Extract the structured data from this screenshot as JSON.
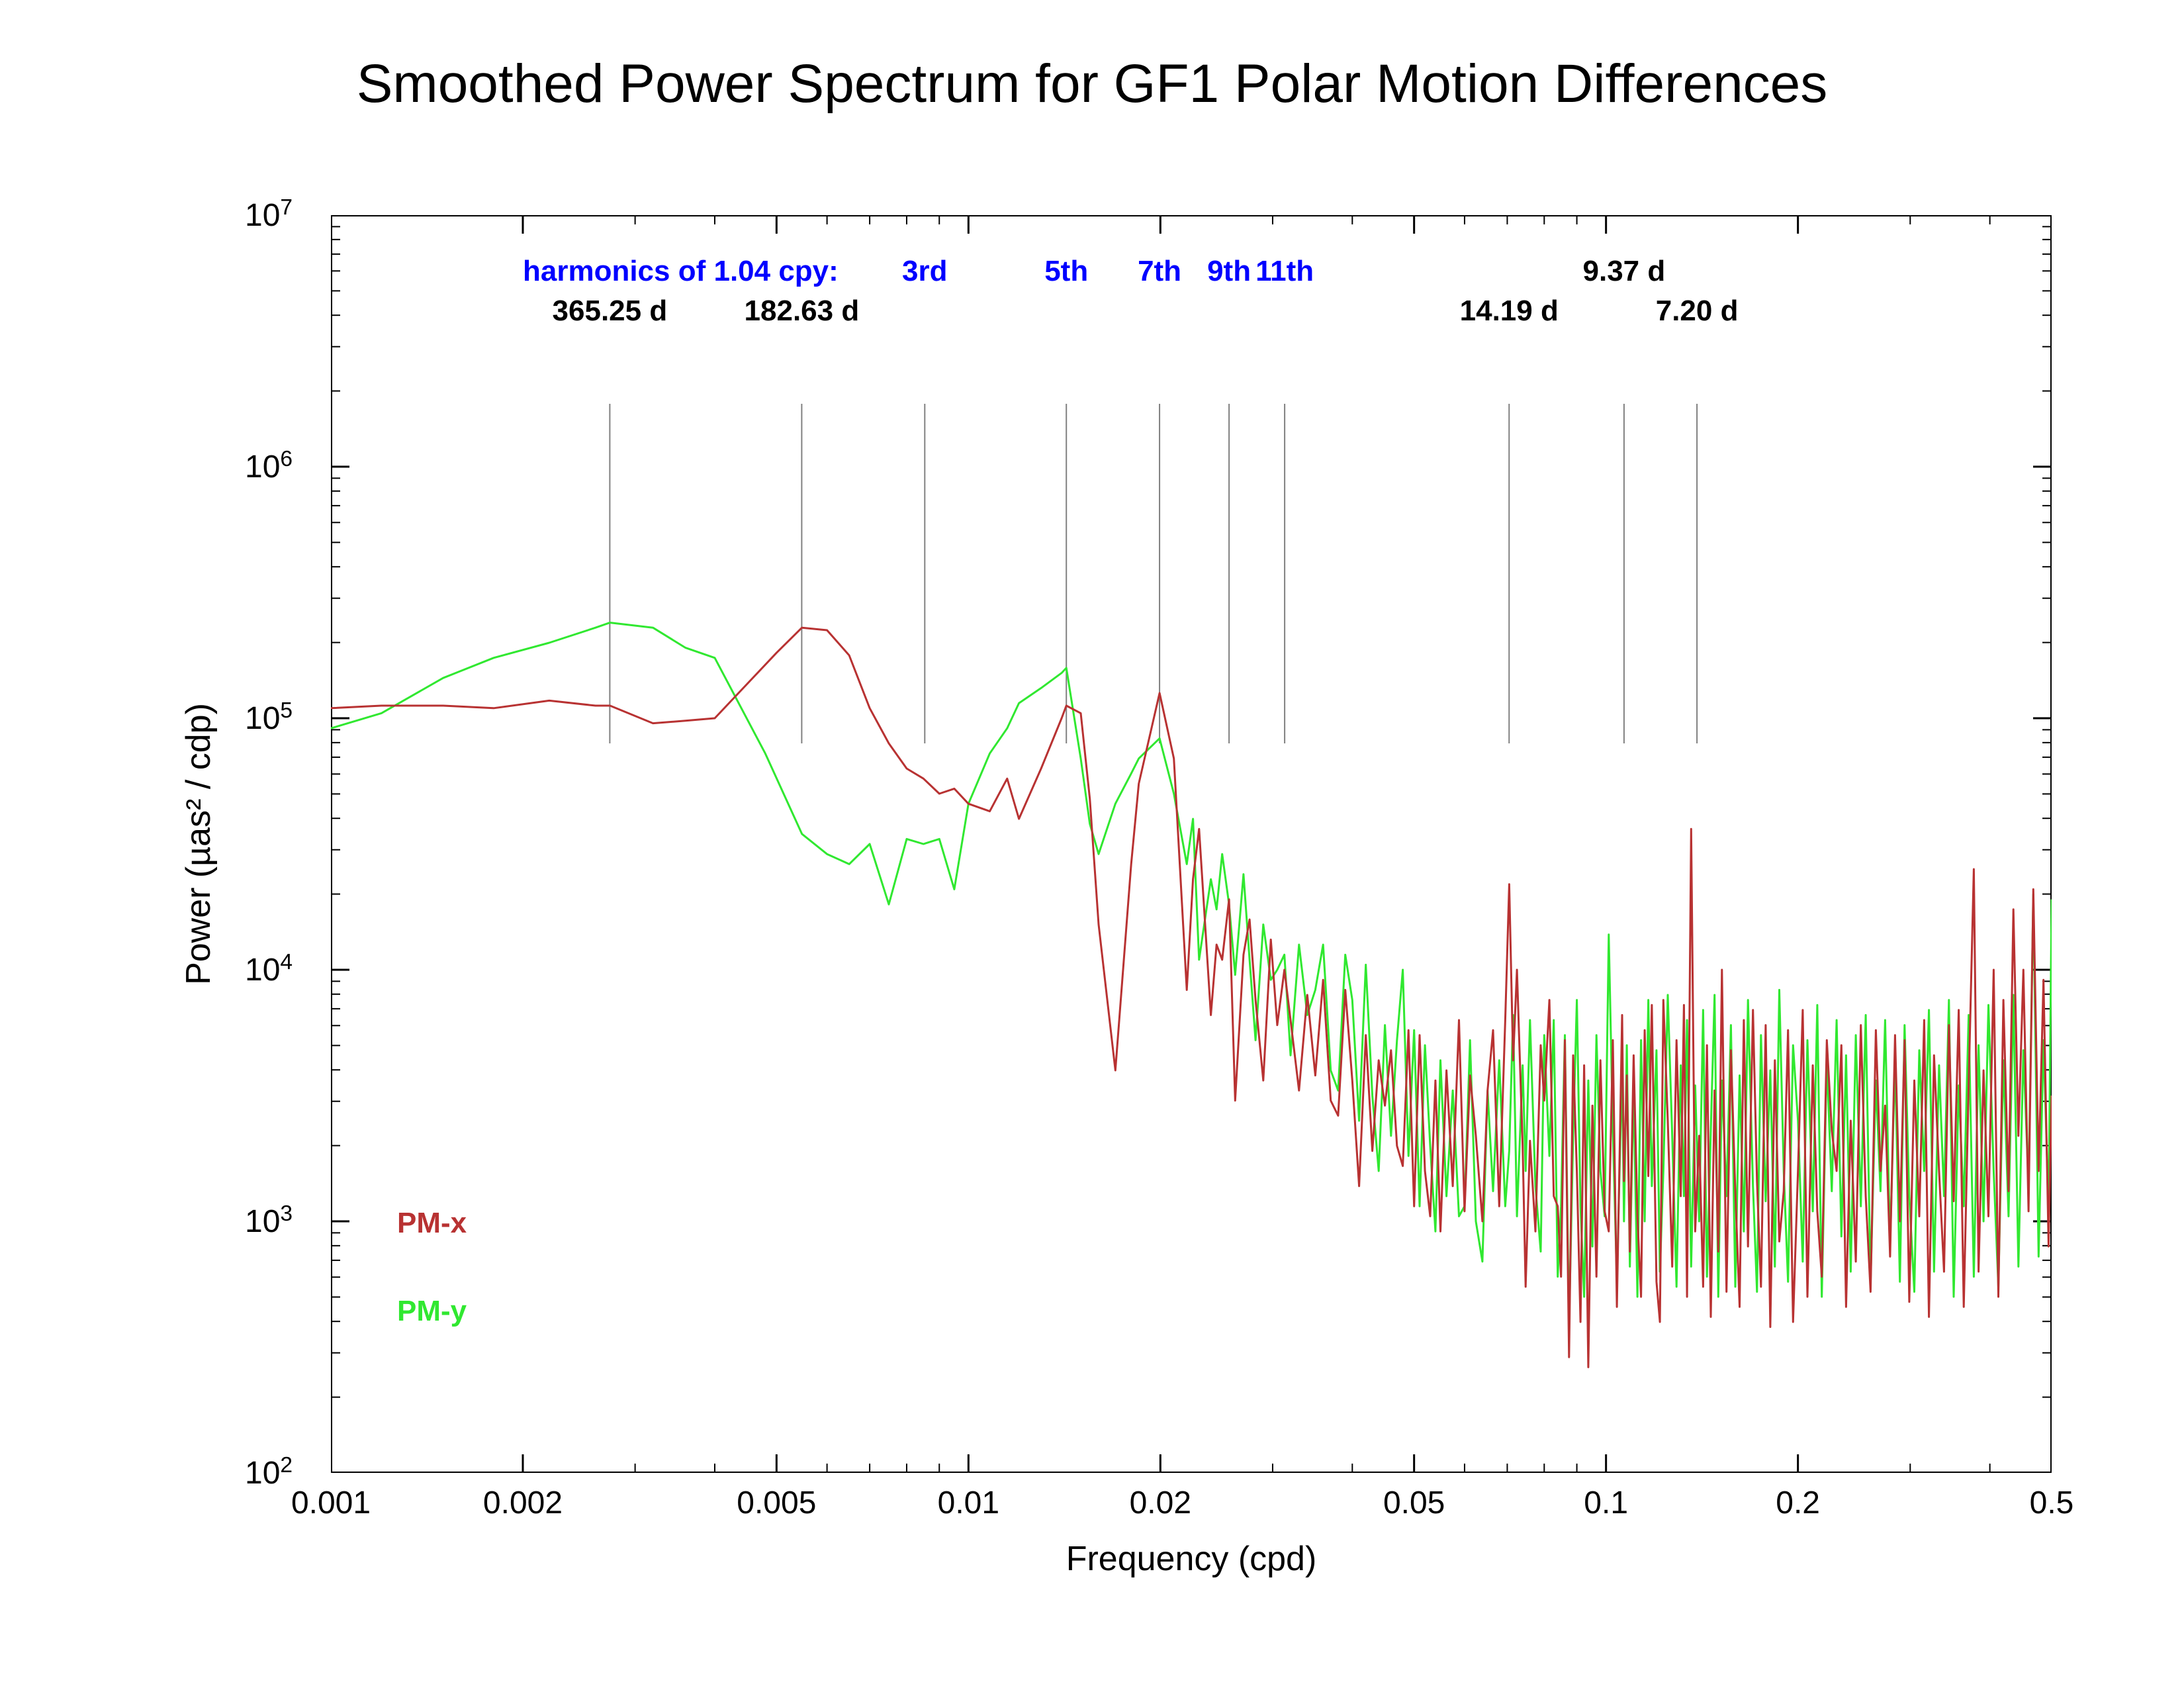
{
  "title": "Smoothed Power Spectrum for GF1 Polar Motion Differences",
  "xlabel": "Frequency (cpd)",
  "ylabel": "Power (µas² / cdp)",
  "x": {
    "min_log10": -3.0,
    "max_log10": -0.3010299957,
    "ticks": [
      0.001,
      0.002,
      0.005,
      0.01,
      0.02,
      0.05,
      0.1,
      0.2,
      0.5
    ],
    "tick_labels": [
      "0.001",
      "0.002",
      "0.005",
      "0.01",
      "0.02",
      "0.05",
      "0.1",
      "0.2",
      "0.5"
    ]
  },
  "y": {
    "min_exp": 2,
    "max_exp": 7,
    "ticks_exp": [
      2,
      3,
      4,
      5,
      6,
      7
    ]
  },
  "colors": {
    "background": "#ffffff",
    "axis": "#000000",
    "tick": "#000000",
    "harmonic_line": "#808080",
    "harmonic_label_blue": "#0000ff",
    "harmonic_label_black": "#000000",
    "pmx": "#b83232",
    "pmy": "#30e830",
    "title_text": "#000000"
  },
  "title_fontsize": 82,
  "axis_label_fontsize": 52,
  "tick_fontsize": 48,
  "harmonic_fontsize": 44,
  "legend_fontsize": 44,
  "line_width_series": 3,
  "line_width_harmonic": 2,
  "axis_line_width": 4,
  "harmonics_legend": "harmonics of 1.04 cpy:",
  "harmonics_blue": [
    {
      "label": "3rd",
      "freq": 0.00854
    },
    {
      "label": "5th",
      "freq": 0.01424
    },
    {
      "label": "7th",
      "freq": 0.01994
    },
    {
      "label": "9th",
      "freq": 0.02563
    },
    {
      "label": "11th",
      "freq": 0.03133
    }
  ],
  "harmonics_black": [
    {
      "label": "365.25 d",
      "freq": 0.002738
    },
    {
      "label": "182.63 d",
      "freq": 0.005476
    },
    {
      "label": "14.19 d",
      "freq": 0.070472
    },
    {
      "label": "9.37 d",
      "freq": 0.106724
    },
    {
      "label": "7.20 d",
      "freq": 0.138889
    }
  ],
  "harmonic_line_ymin_exp": 4.9,
  "harmonic_line_ymax_exp": 6.25,
  "legend": {
    "pmx": "PM-x",
    "pmy": "PM-y"
  },
  "series_pmx": [
    [
      0.001,
      5.04
    ],
    [
      0.0012,
      5.05
    ],
    [
      0.0015,
      5.05
    ],
    [
      0.0018,
      5.04
    ],
    [
      0.0022,
      5.07
    ],
    [
      0.0026,
      5.05
    ],
    [
      0.00274,
      5.05
    ],
    [
      0.0032,
      4.98
    ],
    [
      0.0036,
      4.99
    ],
    [
      0.004,
      5.0
    ],
    [
      0.005,
      5.26
    ],
    [
      0.00548,
      5.36
    ],
    [
      0.006,
      5.35
    ],
    [
      0.0065,
      5.25
    ],
    [
      0.007,
      5.04
    ],
    [
      0.0075,
      4.9
    ],
    [
      0.008,
      4.8
    ],
    [
      0.0085,
      4.76
    ],
    [
      0.009,
      4.7
    ],
    [
      0.0095,
      4.72
    ],
    [
      0.01,
      4.66
    ],
    [
      0.0108,
      4.63
    ],
    [
      0.0115,
      4.76
    ],
    [
      0.012,
      4.6
    ],
    [
      0.013,
      4.8
    ],
    [
      0.014,
      5.0
    ],
    [
      0.01424,
      5.05
    ],
    [
      0.015,
      5.02
    ],
    [
      0.0155,
      4.68
    ],
    [
      0.016,
      4.18
    ],
    [
      0.017,
      3.6
    ],
    [
      0.018,
      4.42
    ],
    [
      0.0185,
      4.74
    ],
    [
      0.01994,
      5.1
    ],
    [
      0.021,
      4.84
    ],
    [
      0.022,
      3.92
    ],
    [
      0.0225,
      4.36
    ],
    [
      0.023,
      4.56
    ],
    [
      0.024,
      3.82
    ],
    [
      0.0245,
      4.1
    ],
    [
      0.025,
      4.04
    ],
    [
      0.02563,
      4.28
    ],
    [
      0.0262,
      3.48
    ],
    [
      0.027,
      4.06
    ],
    [
      0.0276,
      4.2
    ],
    [
      0.0282,
      3.88
    ],
    [
      0.029,
      3.56
    ],
    [
      0.0298,
      4.12
    ],
    [
      0.0305,
      3.78
    ],
    [
      0.0313,
      4.0
    ],
    [
      0.032,
      3.8
    ],
    [
      0.033,
      3.52
    ],
    [
      0.034,
      3.9
    ],
    [
      0.035,
      3.58
    ],
    [
      0.036,
      3.96
    ],
    [
      0.037,
      3.48
    ],
    [
      0.038,
      3.42
    ],
    [
      0.039,
      3.92
    ],
    [
      0.04,
      3.56
    ],
    [
      0.041,
      3.14
    ],
    [
      0.042,
      3.74
    ],
    [
      0.043,
      3.28
    ],
    [
      0.044,
      3.64
    ],
    [
      0.045,
      3.46
    ],
    [
      0.046,
      3.68
    ],
    [
      0.047,
      3.3
    ],
    [
      0.048,
      3.22
    ],
    [
      0.049,
      3.76
    ],
    [
      0.05,
      3.06
    ],
    [
      0.051,
      3.74
    ],
    [
      0.052,
      3.2
    ],
    [
      0.053,
      3.02
    ],
    [
      0.054,
      3.56
    ],
    [
      0.055,
      2.96
    ],
    [
      0.0562,
      3.6
    ],
    [
      0.0575,
      3.14
    ],
    [
      0.0588,
      3.8
    ],
    [
      0.06,
      3.04
    ],
    [
      0.0612,
      3.58
    ],
    [
      0.0625,
      3.34
    ],
    [
      0.064,
      3.0
    ],
    [
      0.0652,
      3.52
    ],
    [
      0.0665,
      3.76
    ],
    [
      0.068,
      3.06
    ],
    [
      0.0695,
      3.8
    ],
    [
      0.0705,
      4.34
    ],
    [
      0.0715,
      3.64
    ],
    [
      0.0725,
      4.0
    ],
    [
      0.074,
      3.3
    ],
    [
      0.0748,
      2.74
    ],
    [
      0.076,
      3.32
    ],
    [
      0.0775,
      2.96
    ],
    [
      0.079,
      3.7
    ],
    [
      0.08,
      3.48
    ],
    [
      0.0815,
      3.88
    ],
    [
      0.0828,
      3.1
    ],
    [
      0.084,
      3.06
    ],
    [
      0.085,
      2.78
    ],
    [
      0.0862,
      3.72
    ],
    [
      0.0875,
      2.46
    ],
    [
      0.0888,
      3.66
    ],
    [
      0.09,
      3.2
    ],
    [
      0.0912,
      2.6
    ],
    [
      0.0924,
      3.62
    ],
    [
      0.0938,
      2.42
    ],
    [
      0.0952,
      3.46
    ],
    [
      0.0966,
      2.78
    ],
    [
      0.098,
      3.64
    ],
    [
      0.0995,
      3.04
    ],
    [
      0.101,
      2.96
    ],
    [
      0.1025,
      3.72
    ],
    [
      0.104,
      2.66
    ],
    [
      0.106,
      3.82
    ],
    [
      0.1067,
      3.16
    ],
    [
      0.1078,
      3.58
    ],
    [
      0.109,
      2.88
    ],
    [
      0.1105,
      3.66
    ],
    [
      0.112,
      3.02
    ],
    [
      0.1135,
      2.7
    ],
    [
      0.115,
      3.76
    ],
    [
      0.1165,
      3.18
    ],
    [
      0.118,
      3.86
    ],
    [
      0.12,
      2.76
    ],
    [
      0.1215,
      2.6
    ],
    [
      0.123,
      3.88
    ],
    [
      0.125,
      3.4
    ],
    [
      0.127,
      2.82
    ],
    [
      0.129,
      3.72
    ],
    [
      0.131,
      3.1
    ],
    [
      0.1325,
      3.86
    ],
    [
      0.134,
      2.7
    ],
    [
      0.136,
      4.56
    ],
    [
      0.138,
      2.96
    ],
    [
      0.14,
      3.34
    ],
    [
      0.142,
      2.74
    ],
    [
      0.144,
      3.7
    ],
    [
      0.146,
      2.62
    ],
    [
      0.148,
      3.52
    ],
    [
      0.15,
      2.88
    ],
    [
      0.152,
      4.0
    ],
    [
      0.1545,
      2.72
    ],
    [
      0.157,
      3.68
    ],
    [
      0.1595,
      3.12
    ],
    [
      0.162,
      2.66
    ],
    [
      0.1645,
      3.8
    ],
    [
      0.167,
      2.9
    ],
    [
      0.17,
      3.84
    ],
    [
      0.1725,
      3.16
    ],
    [
      0.175,
      2.74
    ],
    [
      0.178,
      3.78
    ],
    [
      0.181,
      2.58
    ],
    [
      0.184,
      3.64
    ],
    [
      0.187,
      2.92
    ],
    [
      0.19,
      3.12
    ],
    [
      0.193,
      3.76
    ],
    [
      0.1965,
      2.6
    ],
    [
      0.2,
      3.2
    ],
    [
      0.2035,
      3.84
    ],
    [
      0.207,
      2.7
    ],
    [
      0.211,
      3.62
    ],
    [
      0.2145,
      3.04
    ],
    [
      0.218,
      2.78
    ],
    [
      0.222,
      3.72
    ],
    [
      0.226,
      3.36
    ],
    [
      0.23,
      3.2
    ],
    [
      0.234,
      3.7
    ],
    [
      0.238,
      2.66
    ],
    [
      0.242,
      3.4
    ],
    [
      0.2465,
      2.84
    ],
    [
      0.251,
      3.78
    ],
    [
      0.2555,
      3.1
    ],
    [
      0.26,
      2.72
    ],
    [
      0.265,
      3.76
    ],
    [
      0.2695,
      3.2
    ],
    [
      0.274,
      3.46
    ],
    [
      0.279,
      2.86
    ],
    [
      0.284,
      3.74
    ],
    [
      0.289,
      3.0
    ],
    [
      0.294,
      3.72
    ],
    [
      0.299,
      2.68
    ],
    [
      0.3045,
      3.56
    ],
    [
      0.31,
      3.02
    ],
    [
      0.3155,
      3.8
    ],
    [
      0.321,
      2.62
    ],
    [
      0.327,
      3.66
    ],
    [
      0.333,
      3.2
    ],
    [
      0.339,
      2.8
    ],
    [
      0.345,
      3.78
    ],
    [
      0.351,
      3.08
    ],
    [
      0.3575,
      3.84
    ],
    [
      0.364,
      2.66
    ],
    [
      0.3705,
      3.54
    ],
    [
      0.3775,
      4.4
    ],
    [
      0.384,
      2.8
    ],
    [
      0.391,
      3.6
    ],
    [
      0.398,
      3.02
    ],
    [
      0.4055,
      4.0
    ],
    [
      0.4125,
      2.7
    ],
    [
      0.42,
      3.88
    ],
    [
      0.428,
      3.12
    ],
    [
      0.4355,
      4.24
    ],
    [
      0.4435,
      3.34
    ],
    [
      0.4515,
      4.0
    ],
    [
      0.46,
      3.04
    ],
    [
      0.468,
      4.32
    ],
    [
      0.477,
      3.2
    ],
    [
      0.4855,
      3.96
    ],
    [
      0.4945,
      2.9
    ],
    [
      0.5,
      3.5
    ]
  ],
  "series_pmy": [
    [
      0.001,
      4.96
    ],
    [
      0.0012,
      5.02
    ],
    [
      0.0015,
      5.16
    ],
    [
      0.0018,
      5.24
    ],
    [
      0.0022,
      5.3
    ],
    [
      0.0026,
      5.36
    ],
    [
      0.00274,
      5.38
    ],
    [
      0.0032,
      5.36
    ],
    [
      0.0036,
      5.28
    ],
    [
      0.004,
      5.24
    ],
    [
      0.0048,
      4.86
    ],
    [
      0.00548,
      4.54
    ],
    [
      0.006,
      4.46
    ],
    [
      0.0065,
      4.42
    ],
    [
      0.007,
      4.5
    ],
    [
      0.0075,
      4.26
    ],
    [
      0.008,
      4.52
    ],
    [
      0.0085,
      4.5
    ],
    [
      0.009,
      4.52
    ],
    [
      0.0095,
      4.32
    ],
    [
      0.01,
      4.66
    ],
    [
      0.0108,
      4.86
    ],
    [
      0.0115,
      4.96
    ],
    [
      0.012,
      5.06
    ],
    [
      0.013,
      5.12
    ],
    [
      0.014,
      5.18
    ],
    [
      0.01424,
      5.2
    ],
    [
      0.015,
      4.84
    ],
    [
      0.0155,
      4.58
    ],
    [
      0.016,
      4.46
    ],
    [
      0.017,
      4.66
    ],
    [
      0.018,
      4.78
    ],
    [
      0.0185,
      4.84
    ],
    [
      0.01994,
      4.92
    ],
    [
      0.021,
      4.7
    ],
    [
      0.022,
      4.42
    ],
    [
      0.0225,
      4.6
    ],
    [
      0.023,
      4.04
    ],
    [
      0.024,
      4.36
    ],
    [
      0.0245,
      4.24
    ],
    [
      0.025,
      4.46
    ],
    [
      0.02563,
      4.26
    ],
    [
      0.0262,
      3.98
    ],
    [
      0.027,
      4.38
    ],
    [
      0.0276,
      4.04
    ],
    [
      0.0282,
      3.72
    ],
    [
      0.029,
      4.18
    ],
    [
      0.0298,
      3.96
    ],
    [
      0.0305,
      4.0
    ],
    [
      0.0313,
      4.06
    ],
    [
      0.032,
      3.66
    ],
    [
      0.033,
      4.1
    ],
    [
      0.034,
      3.82
    ],
    [
      0.035,
      3.92
    ],
    [
      0.036,
      4.1
    ],
    [
      0.037,
      3.6
    ],
    [
      0.038,
      3.52
    ],
    [
      0.039,
      4.06
    ],
    [
      0.04,
      3.88
    ],
    [
      0.041,
      3.4
    ],
    [
      0.042,
      4.02
    ],
    [
      0.043,
      3.5
    ],
    [
      0.044,
      3.2
    ],
    [
      0.045,
      3.78
    ],
    [
      0.046,
      3.34
    ],
    [
      0.047,
      3.72
    ],
    [
      0.048,
      4.0
    ],
    [
      0.049,
      3.26
    ],
    [
      0.05,
      3.76
    ],
    [
      0.051,
      3.06
    ],
    [
      0.052,
      3.7
    ],
    [
      0.053,
      3.3
    ],
    [
      0.054,
      2.96
    ],
    [
      0.055,
      3.64
    ],
    [
      0.0562,
      3.1
    ],
    [
      0.0575,
      3.52
    ],
    [
      0.0588,
      3.02
    ],
    [
      0.06,
      3.06
    ],
    [
      0.0612,
      3.72
    ],
    [
      0.0625,
      3.0
    ],
    [
      0.064,
      2.84
    ],
    [
      0.0652,
      3.52
    ],
    [
      0.0665,
      3.12
    ],
    [
      0.068,
      3.64
    ],
    [
      0.0695,
      3.06
    ],
    [
      0.0705,
      3.28
    ],
    [
      0.0715,
      3.82
    ],
    [
      0.0725,
      3.02
    ],
    [
      0.074,
      3.62
    ],
    [
      0.0748,
      3.2
    ],
    [
      0.076,
      3.8
    ],
    [
      0.0775,
      3.14
    ],
    [
      0.079,
      2.88
    ],
    [
      0.08,
      3.74
    ],
    [
      0.0815,
      3.26
    ],
    [
      0.0828,
      3.8
    ],
    [
      0.084,
      2.78
    ],
    [
      0.085,
      3.06
    ],
    [
      0.0862,
      3.74
    ],
    [
      0.0875,
      2.58
    ],
    [
      0.0888,
      3.34
    ],
    [
      0.09,
      3.88
    ],
    [
      0.0912,
      3.06
    ],
    [
      0.0924,
      2.7
    ],
    [
      0.0938,
      3.56
    ],
    [
      0.0952,
      2.9
    ],
    [
      0.0966,
      3.74
    ],
    [
      0.098,
      3.2
    ],
    [
      0.0995,
      3.02
    ],
    [
      0.101,
      4.14
    ],
    [
      0.1025,
      3.36
    ],
    [
      0.104,
      2.76
    ],
    [
      0.106,
      3.62
    ],
    [
      0.1067,
      3.0
    ],
    [
      0.1078,
      3.7
    ],
    [
      0.109,
      2.82
    ],
    [
      0.1105,
      3.54
    ],
    [
      0.112,
      2.7
    ],
    [
      0.1135,
      3.72
    ],
    [
      0.115,
      3.0
    ],
    [
      0.1165,
      3.88
    ],
    [
      0.118,
      3.14
    ],
    [
      0.12,
      3.68
    ],
    [
      0.1215,
      2.8
    ],
    [
      0.123,
      3.2
    ],
    [
      0.125,
      3.9
    ],
    [
      0.127,
      3.34
    ],
    [
      0.129,
      2.74
    ],
    [
      0.131,
      3.62
    ],
    [
      0.1325,
      3.1
    ],
    [
      0.134,
      3.8
    ],
    [
      0.136,
      2.82
    ],
    [
      0.138,
      3.54
    ],
    [
      0.14,
      3.0
    ],
    [
      0.142,
      3.84
    ],
    [
      0.144,
      2.78
    ],
    [
      0.146,
      3.36
    ],
    [
      0.148,
      3.9
    ],
    [
      0.15,
      2.7
    ],
    [
      0.152,
      3.56
    ],
    [
      0.1545,
      3.1
    ],
    [
      0.157,
      3.78
    ],
    [
      0.1595,
      2.74
    ],
    [
      0.162,
      3.58
    ],
    [
      0.1645,
      2.96
    ],
    [
      0.167,
      3.88
    ],
    [
      0.17,
      3.14
    ],
    [
      0.1725,
      2.72
    ],
    [
      0.175,
      3.74
    ],
    [
      0.178,
      3.08
    ],
    [
      0.181,
      3.6
    ],
    [
      0.184,
      2.82
    ],
    [
      0.187,
      3.92
    ],
    [
      0.19,
      3.2
    ],
    [
      0.193,
      2.76
    ],
    [
      0.1965,
      3.7
    ],
    [
      0.2,
      3.4
    ],
    [
      0.2035,
      2.84
    ],
    [
      0.207,
      3.72
    ],
    [
      0.211,
      3.04
    ],
    [
      0.2145,
      3.86
    ],
    [
      0.218,
      2.7
    ],
    [
      0.222,
      3.64
    ],
    [
      0.226,
      3.12
    ],
    [
      0.23,
      3.8
    ],
    [
      0.234,
      2.94
    ],
    [
      0.238,
      3.66
    ],
    [
      0.242,
      2.8
    ],
    [
      0.2465,
      3.74
    ],
    [
      0.251,
      3.06
    ],
    [
      0.2555,
      3.82
    ],
    [
      0.26,
      2.76
    ],
    [
      0.265,
      3.56
    ],
    [
      0.2695,
      3.12
    ],
    [
      0.274,
      3.8
    ],
    [
      0.279,
      2.9
    ],
    [
      0.284,
      3.64
    ],
    [
      0.289,
      2.76
    ],
    [
      0.294,
      3.78
    ],
    [
      0.299,
      3.1
    ],
    [
      0.3045,
      2.72
    ],
    [
      0.31,
      3.68
    ],
    [
      0.3155,
      3.2
    ],
    [
      0.321,
      3.84
    ],
    [
      0.327,
      2.8
    ],
    [
      0.333,
      3.62
    ],
    [
      0.339,
      3.1
    ],
    [
      0.345,
      3.88
    ],
    [
      0.351,
      2.7
    ],
    [
      0.3575,
      3.54
    ],
    [
      0.364,
      3.06
    ],
    [
      0.3705,
      3.82
    ],
    [
      0.3775,
      2.78
    ],
    [
      0.384,
      3.7
    ],
    [
      0.391,
      3.0
    ],
    [
      0.398,
      3.86
    ],
    [
      0.4055,
      3.2
    ],
    [
      0.4125,
      2.74
    ],
    [
      0.42,
      3.64
    ],
    [
      0.428,
      3.02
    ],
    [
      0.4355,
      3.9
    ],
    [
      0.4435,
      2.82
    ],
    [
      0.4515,
      3.68
    ],
    [
      0.46,
      3.14
    ],
    [
      0.468,
      4.3
    ],
    [
      0.477,
      2.86
    ],
    [
      0.4855,
      3.72
    ],
    [
      0.4945,
      3.04
    ],
    [
      0.5,
      4.28
    ]
  ]
}
